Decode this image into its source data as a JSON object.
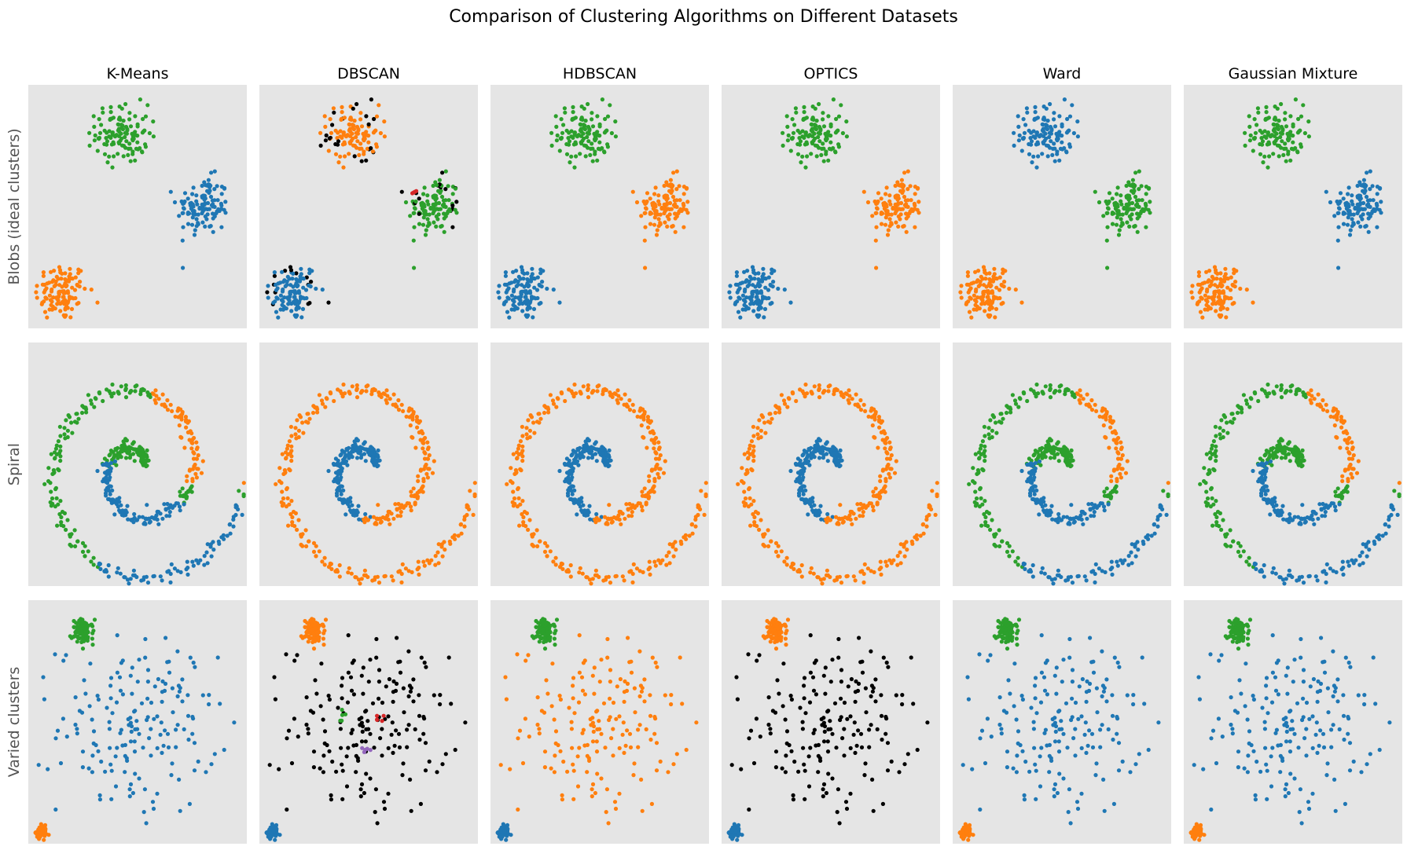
{
  "title": "Comparison of Clustering Algorithms on Different Datasets",
  "columns": [
    "K-Means",
    "DBSCAN",
    "HDBSCAN",
    "OPTICS",
    "Ward",
    "Gaussian Mixture"
  ],
  "rows": [
    "Blobs (ideal clusters)",
    "Spiral",
    "Varied clusters"
  ],
  "colors": {
    "panel_bg": "#e5e5e5",
    "c0": "#1f77b4",
    "c1": "#ff7f0e",
    "c2": "#2ca02c",
    "c3": "#d62728",
    "c4": "#9467bd",
    "noise": "#000000"
  },
  "chart_data": {
    "type": "scatter",
    "grid": false,
    "axes_visible": false,
    "xlim": [
      0,
      10
    ],
    "ylim": [
      0,
      10
    ],
    "datasets": {
      "blobs": {
        "clusters": [
          {
            "id": "A",
            "center": [
              1.5,
              1.5
            ],
            "spread": 0.6,
            "n": 120
          },
          {
            "id": "B",
            "center": [
              8.0,
              5.0
            ],
            "spread": 0.6,
            "n": 120
          },
          {
            "id": "C",
            "center": [
              4.3,
              8.0
            ],
            "spread": 0.6,
            "n": 120
          }
        ],
        "labels_by_algorithm": {
          "K-Means": {
            "A": "c1",
            "B": "c0",
            "C": "c2"
          },
          "DBSCAN": {
            "A": "c0",
            "B": "c2",
            "C": "c1",
            "noise_fraction": 0.12,
            "minor": [
              {
                "cluster": "B",
                "color": "c3",
                "n": 4
              }
            ]
          },
          "HDBSCAN": {
            "A": "c0",
            "B": "c1",
            "C": "c2"
          },
          "OPTICS": {
            "A": "c0",
            "B": "c1",
            "C": "c2"
          },
          "Ward": {
            "A": "c1",
            "B": "c2",
            "C": "c0"
          },
          "Gaussian Mixture": {
            "A": "c1",
            "B": "c0",
            "C": "c2"
          }
        }
      },
      "spiral": {
        "arms": [
          {
            "id": "inner",
            "points": 260,
            "description": "inner curl"
          },
          {
            "id": "outer",
            "points": 260,
            "description": "outer arc"
          }
        ],
        "labels_by_algorithm": {
          "K-Means": {
            "segments": [
              {
                "range": "outer-upper-right",
                "color": "c1"
              },
              {
                "range": "outer-left",
                "color": "c2"
              },
              {
                "range": "outer-bottom",
                "color": "c0"
              },
              {
                "range": "inner-core",
                "color": "c2"
              },
              {
                "range": "inner-tail",
                "color": "c0"
              }
            ]
          },
          "DBSCAN": {
            "inner": "c0",
            "outer": "c1"
          },
          "HDBSCAN": {
            "inner": "c0",
            "outer": "c1"
          },
          "OPTICS": {
            "inner": "c0",
            "outer": "c1"
          },
          "Ward": {
            "segments": [
              {
                "range": "outer-upper-right",
                "color": "c1"
              },
              {
                "range": "outer-left",
                "color": "c2"
              },
              {
                "range": "outer-bottom",
                "color": "c0"
              },
              {
                "range": "inner-core",
                "color": "c2"
              },
              {
                "range": "inner-tail",
                "color": "c0"
              }
            ]
          },
          "Gaussian Mixture": {
            "segments": [
              {
                "range": "outer-upper-right",
                "color": "c1"
              },
              {
                "range": "outer-left",
                "color": "c2"
              },
              {
                "range": "outer-bottom",
                "color": "c0"
              },
              {
                "range": "inner-core",
                "color": "c2"
              },
              {
                "range": "inner-tail",
                "color": "c0"
              }
            ]
          }
        }
      },
      "varied": {
        "clusters": [
          {
            "id": "tight",
            "center": [
              0.6,
              0.5
            ],
            "spread": 0.12,
            "n": 80
          },
          {
            "id": "small",
            "center": [
              2.5,
              8.7
            ],
            "spread": 0.25,
            "n": 90
          },
          {
            "id": "wide",
            "center": [
              5.0,
              4.8
            ],
            "spread": 1.8,
            "n": 180
          }
        ],
        "labels_by_algorithm": {
          "K-Means": {
            "tight": "c1",
            "small": "c2",
            "wide": "c0"
          },
          "DBSCAN": {
            "tight": "c0",
            "small": "c1",
            "wide": "noise",
            "minor": [
              {
                "cluster": "wide",
                "color": "c2",
                "n": 5
              },
              {
                "cluster": "wide",
                "color": "c3",
                "n": 5
              },
              {
                "cluster": "wide",
                "color": "c4",
                "n": 5
              }
            ]
          },
          "HDBSCAN": {
            "tight": "c0",
            "small": "c2",
            "wide": "c1"
          },
          "OPTICS": {
            "tight": "c0",
            "small": "c1",
            "wide": "noise"
          },
          "Ward": {
            "tight": "c1",
            "small": "c2",
            "wide": "c0"
          },
          "Gaussian Mixture": {
            "tight": "c1",
            "small": "c2",
            "wide": "c0"
          }
        }
      }
    }
  }
}
